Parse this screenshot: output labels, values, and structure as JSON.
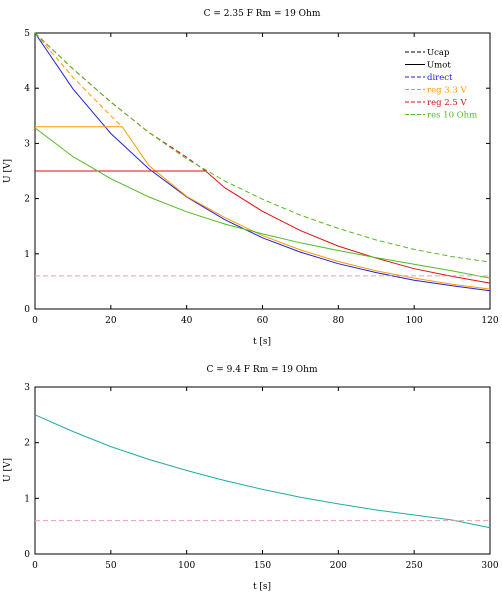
{
  "chart_data": [
    {
      "type": "line",
      "title": "C = 2.35 F    Rm = 19 Ohm",
      "xlabel": "t [s]",
      "ylabel": "U [V]",
      "xlim": [
        0,
        120
      ],
      "ylim": [
        0,
        5
      ],
      "xticks": [
        "0",
        "20",
        "40",
        "60",
        "80",
        "100",
        "120"
      ],
      "yticks": [
        "0",
        "1",
        "2",
        "3",
        "4",
        "5"
      ],
      "grid": false,
      "legend_position": "top-right",
      "legend": [
        {
          "label": "Ucap",
          "color": "#000000",
          "dash": true
        },
        {
          "label": "Umot",
          "color": "#000000",
          "dash": false
        },
        {
          "label": "direct",
          "color": "#2222dd",
          "dash": true
        },
        {
          "label": "reg 3.3 V",
          "color": "#ff9900",
          "dash": true
        },
        {
          "label": "reg 2.5 V",
          "color": "#dd1111",
          "dash": true
        },
        {
          "label": "res 10 Ohm",
          "color": "#55bb22",
          "dash": true
        }
      ],
      "series": [
        {
          "name": "direct",
          "style": "solid",
          "color": "#2222dd",
          "x": [
            0,
            10,
            20,
            30,
            40,
            50,
            60,
            70,
            80,
            90,
            100,
            110,
            120
          ],
          "y": [
            5.0,
            3.99,
            3.18,
            2.54,
            2.03,
            1.62,
            1.29,
            1.03,
            0.82,
            0.66,
            0.52,
            0.42,
            0.33
          ]
        },
        {
          "name": "reg 3.3 V",
          "style": "solid",
          "color": "#ff9900",
          "x": [
            0,
            23,
            30,
            40,
            50,
            60,
            70,
            80,
            90,
            100,
            110,
            120
          ],
          "y": [
            3.3,
            3.3,
            2.6,
            2.04,
            1.66,
            1.33,
            1.07,
            0.86,
            0.69,
            0.56,
            0.45,
            0.36
          ]
        },
        {
          "name": "reg 3.3 V",
          "style": "dashed",
          "color": "#ff9900",
          "x": [
            0,
            10,
            20,
            23
          ],
          "y": [
            5.0,
            4.2,
            3.5,
            3.3
          ]
        },
        {
          "name": "reg 2.5 V",
          "style": "solid",
          "color": "#dd1111",
          "x": [
            0,
            45,
            50,
            60,
            70,
            80,
            90,
            100,
            110,
            120
          ],
          "y": [
            2.5,
            2.5,
            2.2,
            1.77,
            1.42,
            1.14,
            0.92,
            0.73,
            0.59,
            0.47
          ]
        },
        {
          "name": "reg 2.5 V",
          "style": "dashed",
          "color": "#dd1111",
          "x": [
            0,
            10,
            20,
            30,
            40,
            45
          ],
          "y": [
            5.0,
            4.35,
            3.75,
            3.2,
            2.75,
            2.5
          ]
        },
        {
          "name": "res 10 Ohm",
          "style": "solid",
          "color": "#55bb22",
          "x": [
            0,
            10,
            20,
            30,
            40,
            50,
            60,
            70,
            80,
            90,
            100,
            110,
            120
          ],
          "y": [
            3.28,
            2.76,
            2.36,
            2.03,
            1.76,
            1.54,
            1.36,
            1.2,
            1.06,
            0.93,
            0.81,
            0.69,
            0.56
          ]
        },
        {
          "name": "res 10 Ohm",
          "style": "dashed",
          "color": "#55bb22",
          "x": [
            0,
            10,
            20,
            30,
            40,
            50,
            60,
            70,
            80,
            90,
            100,
            110,
            120
          ],
          "y": [
            5.0,
            4.35,
            3.75,
            3.2,
            2.72,
            2.32,
            1.99,
            1.7,
            1.46,
            1.25,
            1.08,
            0.95,
            0.85
          ]
        },
        {
          "name": "",
          "style": "dashed",
          "color": "#f0a0a0",
          "x": [
            0,
            120
          ],
          "y": [
            0.6,
            0.6
          ]
        }
      ]
    },
    {
      "type": "line",
      "title": "C = 9.4 F    Rm = 19 Ohm",
      "xlabel": "t [s]",
      "ylabel": "U [V]",
      "xlim": [
        0,
        300
      ],
      "ylim": [
        0,
        3
      ],
      "xticks": [
        "0",
        "50",
        "100",
        "150",
        "200",
        "250",
        "300"
      ],
      "yticks": [
        "0",
        "1",
        "2",
        "3"
      ],
      "grid": false,
      "series": [
        {
          "name": "",
          "style": "solid",
          "color": "#22aaaa",
          "x": [
            0,
            25,
            50,
            75,
            100,
            125,
            150,
            175,
            200,
            225,
            250,
            275,
            300
          ],
          "y": [
            2.5,
            2.2,
            1.93,
            1.7,
            1.5,
            1.32,
            1.16,
            1.02,
            0.9,
            0.79,
            0.7,
            0.61,
            0.47
          ]
        },
        {
          "name": "",
          "style": "dashed",
          "color": "#f0a0a0",
          "x": [
            0,
            300
          ],
          "y": [
            0.6,
            0.6
          ]
        }
      ]
    }
  ]
}
